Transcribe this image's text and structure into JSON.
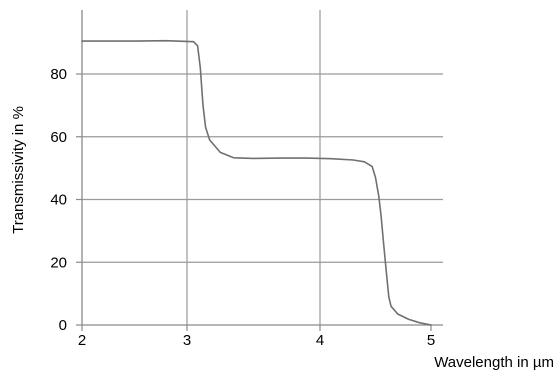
{
  "chart_data": {
    "type": "line",
    "title": "",
    "xlabel": "Wavelength in µm",
    "ylabel": "Transmissivity in %",
    "xlim": [
      2,
      5
    ],
    "ylim": [
      0,
      100
    ],
    "x_ticks": [
      2,
      3,
      4,
      5
    ],
    "y_ticks": [
      0,
      20,
      40,
      60,
      80
    ],
    "grid": true,
    "series": [
      {
        "color": "#707070",
        "x": [
          2.0,
          2.5,
          2.8,
          3.05,
          3.08,
          3.1,
          3.12,
          3.14,
          3.17,
          3.25,
          3.35,
          3.5,
          3.7,
          3.9,
          4.1,
          4.3,
          4.4,
          4.47,
          4.5,
          4.53,
          4.55,
          4.57,
          4.6,
          4.62,
          4.64,
          4.7,
          4.8,
          4.9,
          5.0
        ],
        "y": [
          90.5,
          90.5,
          90.6,
          90.3,
          89.0,
          82.0,
          70.0,
          63.0,
          59.0,
          55.0,
          53.3,
          53.1,
          53.2,
          53.2,
          53.0,
          52.6,
          52.0,
          50.5,
          47.0,
          41.0,
          35.0,
          27.0,
          16.0,
          9.0,
          6.0,
          3.5,
          1.8,
          0.7,
          0.0
        ]
      }
    ]
  }
}
